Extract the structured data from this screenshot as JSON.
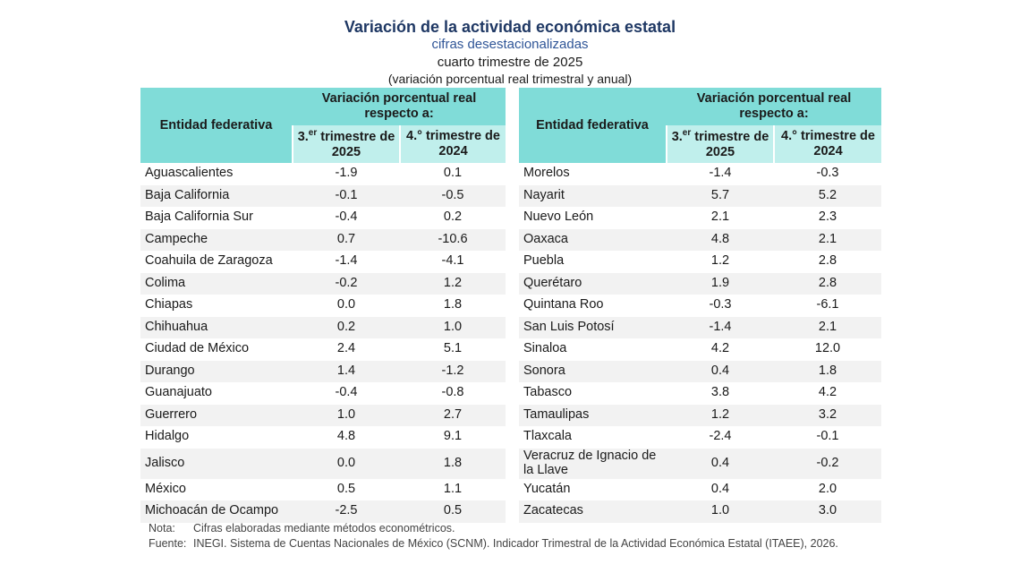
{
  "header": {
    "title": "Variación de la actividad económica estatal",
    "subtitle": "cifras desestacionalizadas",
    "period": "cuarto trimestre de 2025",
    "unit": "(variación porcentual real trimestral y anual)"
  },
  "tables": [
    {
      "header": {
        "entity": "Entidad federativa",
        "group": "Variación porcentual real respecto a:",
        "col1": {
          "pre": "3.",
          "sup": "er",
          "post": "trimestre de 2025"
        },
        "col2": "4.° trimestre de 2024"
      },
      "rows": [
        [
          "Aguascalientes",
          "-1.9",
          "0.1"
        ],
        [
          "Baja California",
          "-0.1",
          "-0.5"
        ],
        [
          "Baja California Sur",
          "-0.4",
          "0.2"
        ],
        [
          "Campeche",
          "0.7",
          "-10.6"
        ],
        [
          "Coahuila de Zaragoza",
          "-1.4",
          "-4.1"
        ],
        [
          "Colima",
          "-0.2",
          "1.2"
        ],
        [
          "Chiapas",
          "0.0",
          "1.8"
        ],
        [
          "Chihuahua",
          "0.2",
          "1.0"
        ],
        [
          "Ciudad de México",
          "2.4",
          "5.1"
        ],
        [
          "Durango",
          "1.4",
          "-1.2"
        ],
        [
          "Guanajuato",
          "-0.4",
          "-0.8"
        ],
        [
          "Guerrero",
          "1.0",
          "2.7"
        ],
        [
          "Hidalgo",
          "4.8",
          "9.1"
        ],
        [
          "Jalisco",
          "0.0",
          "1.8"
        ],
        [
          "México",
          "0.5",
          "1.1"
        ],
        [
          "Michoacán de Ocampo",
          "-2.5",
          "0.5"
        ]
      ]
    },
    {
      "header": {
        "entity": "Entidad federativa",
        "group": "Variación porcentual real respecto a:",
        "col1": {
          "pre": "3.",
          "sup": "er",
          "post": "trimestre de 2025"
        },
        "col2": "4.° trimestre de 2024"
      },
      "rows": [
        [
          "Morelos",
          "-1.4",
          "-0.3"
        ],
        [
          "Nayarit",
          "5.7",
          "5.2"
        ],
        [
          "Nuevo León",
          "2.1",
          "2.3"
        ],
        [
          "Oaxaca",
          "4.8",
          "2.1"
        ],
        [
          "Puebla",
          "1.2",
          "2.8"
        ],
        [
          "Querétaro",
          "1.9",
          "2.8"
        ],
        [
          "Quintana Roo",
          "-0.3",
          "-6.1"
        ],
        [
          "San Luis Potosí",
          "-1.4",
          "2.1"
        ],
        [
          "Sinaloa",
          "4.2",
          "12.0"
        ],
        [
          "Sonora",
          "0.4",
          "1.8"
        ],
        [
          "Tabasco",
          "3.8",
          "4.2"
        ],
        [
          "Tamaulipas",
          "1.2",
          "3.2"
        ],
        [
          "Tlaxcala",
          "-2.4",
          "-0.1"
        ],
        [
          "Veracruz de Ignacio de la Llave",
          "0.4",
          "-0.2"
        ],
        [
          "Yucatán",
          "0.4",
          "2.0"
        ],
        [
          "Zacatecas",
          "1.0",
          "3.0"
        ]
      ]
    }
  ],
  "notes": {
    "note_label": "Nota:",
    "note": "Cifras elaboradas mediante métodos econométricos.",
    "source_label": "Fuente:",
    "source": "INEGI. Sistema de Cuentas Nacionales de México (SCNM). Indicador Trimestral de la Actividad Económica Estatal (ITAEE), 2026."
  }
}
